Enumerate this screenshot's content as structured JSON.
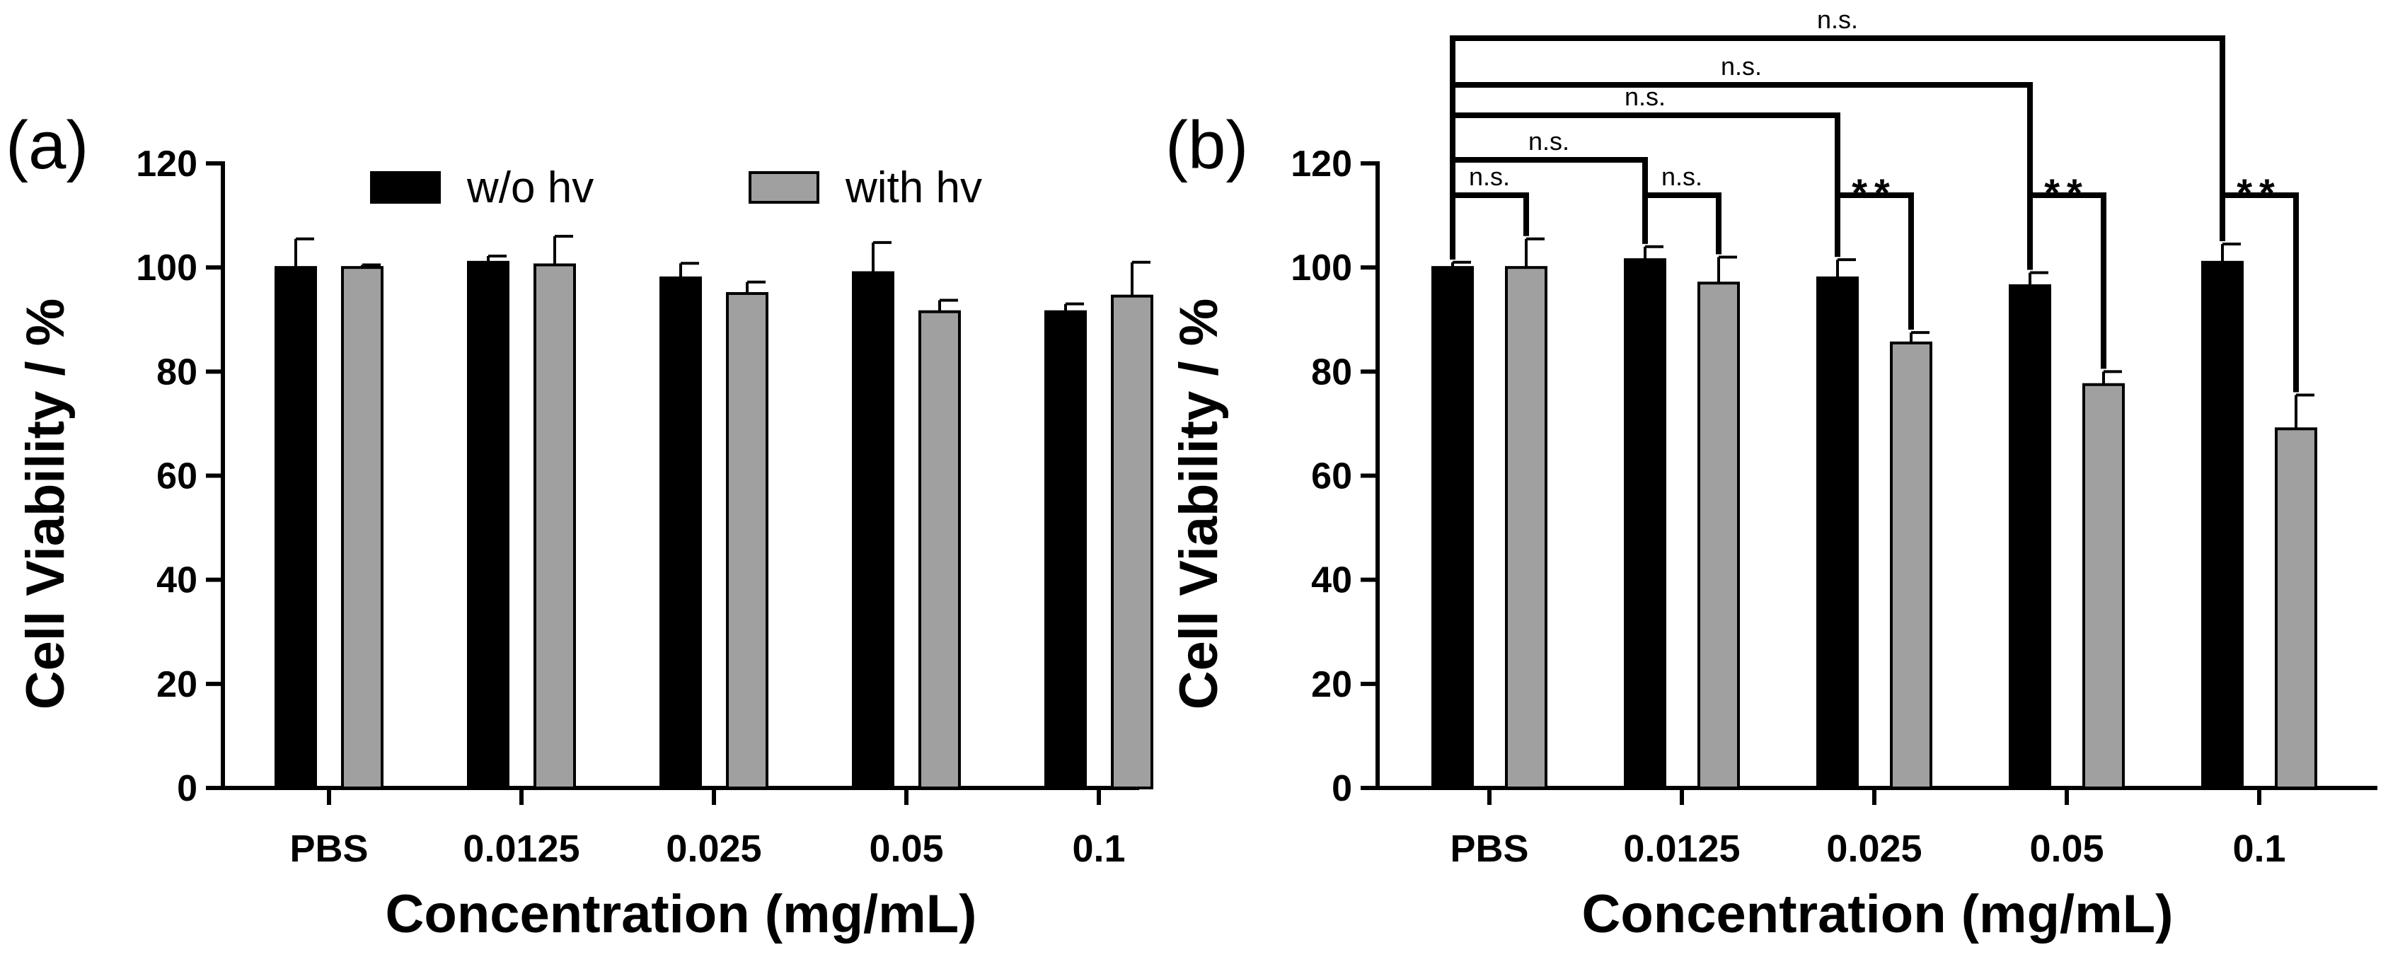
{
  "chart_data": [
    {
      "panel": "(a)",
      "type": "bar",
      "categories": [
        "PBS",
        "0.0125",
        "0.025",
        "0.05",
        "0.1"
      ],
      "series": [
        {
          "name": "w/o hv",
          "color": "#000000",
          "values": [
            100,
            101,
            98,
            99,
            91.5
          ],
          "errors": [
            5.5,
            1.2,
            2.8,
            5.8,
            1.5
          ]
        },
        {
          "name": "with hv",
          "color": "#a0a0a0",
          "values": [
            100,
            100.5,
            95,
            91.5,
            94.5
          ],
          "errors": [
            0.5,
            5.5,
            2.2,
            2.2,
            6.5
          ]
        }
      ],
      "xlabel": "Concentration (mg/mL)",
      "ylabel": "Cell Viability / %",
      "ylim": [
        0,
        120
      ],
      "yticks": [
        "0",
        "20",
        "40",
        "60",
        "80",
        "100",
        "120"
      ],
      "legend": "top"
    },
    {
      "panel": "(b)",
      "type": "bar",
      "categories": [
        "PBS",
        "0.0125",
        "0.025",
        "0.05",
        "0.1"
      ],
      "series": [
        {
          "name": "w/o hv",
          "color": "#000000",
          "values": [
            100,
            101.5,
            98,
            96.5,
            101
          ],
          "errors": [
            1,
            2.5,
            3.5,
            2.5,
            3.5
          ]
        },
        {
          "name": "with hv",
          "color": "#a0a0a0",
          "values": [
            100,
            97,
            85.5,
            77.5,
            69
          ],
          "errors": [
            5.5,
            5,
            2,
            2.5,
            6.5
          ]
        }
      ],
      "xlabel": "Concentration (mg/mL)",
      "ylabel": "Cell Viability / %",
      "ylim": [
        0,
        120
      ],
      "yticks": [
        "0",
        "20",
        "40",
        "60",
        "80",
        "100",
        "120"
      ],
      "annotations": [
        {
          "from": "PBS:w/o hv",
          "to": "PBS:with hv",
          "label": "n.s."
        },
        {
          "from": "0.0125:w/o hv",
          "to": "0.0125:with hv",
          "label": "n.s."
        },
        {
          "from": "0.025:w/o hv",
          "to": "0.025:with hv",
          "label": "**"
        },
        {
          "from": "0.05:w/o hv",
          "to": "0.05:with hv",
          "label": "**"
        },
        {
          "from": "0.1:w/o hv",
          "to": "0.1:with hv",
          "label": "**"
        },
        {
          "from": "PBS:w/o hv",
          "to": "0.0125:w/o hv",
          "label": "n.s."
        },
        {
          "from": "PBS:w/o hv",
          "to": "0.025:w/o hv",
          "label": "n.s."
        },
        {
          "from": "PBS:w/o hv",
          "to": "0.05:w/o hv",
          "label": "n.s."
        },
        {
          "from": "PBS:w/o hv",
          "to": "0.1:w/o hv",
          "label": "n.s."
        }
      ]
    }
  ]
}
